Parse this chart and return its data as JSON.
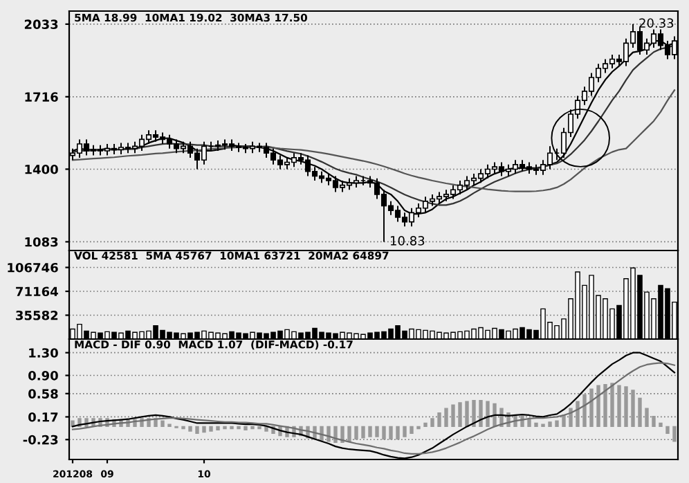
{
  "chart_data": [
    {
      "type": "candlestick",
      "title": "5MA 18.99  10MA1 19.02  30MA3 17.50",
      "categories": [
        "201208",
        null,
        null,
        null,
        null,
        "09",
        null,
        null,
        null,
        null,
        null,
        null,
        null,
        null,
        null,
        null,
        null,
        null,
        null,
        "10",
        null,
        null,
        null,
        null,
        null,
        null,
        null,
        null,
        null,
        null,
        null,
        null,
        null,
        null,
        null,
        null,
        null,
        null,
        null,
        null,
        null,
        null,
        null,
        null,
        null,
        null,
        null,
        null,
        null,
        null,
        null,
        null,
        null,
        null,
        null,
        null,
        null,
        null,
        null,
        null,
        null,
        null,
        null,
        null,
        null,
        null,
        null,
        null,
        null,
        null,
        null,
        null,
        null,
        null,
        null,
        null,
        null,
        null,
        null,
        null,
        null,
        null,
        null,
        null,
        null,
        null,
        null,
        null
      ],
      "ohlc": [
        [
          1460,
          1490,
          1440,
          1470
        ],
        [
          1470,
          1530,
          1450,
          1510
        ],
        [
          1510,
          1530,
          1460,
          1480
        ],
        [
          1480,
          1505,
          1460,
          1485
        ],
        [
          1485,
          1505,
          1460,
          1480
        ],
        [
          1480,
          1510,
          1460,
          1490
        ],
        [
          1490,
          1510,
          1465,
          1485
        ],
        [
          1485,
          1515,
          1465,
          1495
        ],
        [
          1495,
          1515,
          1470,
          1490
        ],
        [
          1490,
          1520,
          1470,
          1500
        ],
        [
          1500,
          1550,
          1480,
          1530
        ],
        [
          1530,
          1570,
          1510,
          1550
        ],
        [
          1550,
          1570,
          1520,
          1540
        ],
        [
          1540,
          1560,
          1510,
          1530
        ],
        [
          1530,
          1550,
          1490,
          1510
        ],
        [
          1510,
          1530,
          1470,
          1490
        ],
        [
          1490,
          1520,
          1470,
          1500
        ],
        [
          1500,
          1520,
          1450,
          1470
        ],
        [
          1470,
          1490,
          1400,
          1440
        ],
        [
          1440,
          1520,
          1420,
          1500
        ],
        [
          1500,
          1520,
          1480,
          1500
        ],
        [
          1500,
          1525,
          1480,
          1505
        ],
        [
          1505,
          1530,
          1485,
          1510
        ],
        [
          1510,
          1530,
          1480,
          1500
        ],
        [
          1500,
          1515,
          1475,
          1495
        ],
        [
          1495,
          1510,
          1470,
          1490
        ],
        [
          1490,
          1520,
          1470,
          1500
        ],
        [
          1500,
          1515,
          1475,
          1495
        ],
        [
          1495,
          1515,
          1450,
          1470
        ],
        [
          1470,
          1490,
          1420,
          1440
        ],
        [
          1440,
          1460,
          1400,
          1420
        ],
        [
          1420,
          1450,
          1400,
          1430
        ],
        [
          1430,
          1470,
          1410,
          1450
        ],
        [
          1450,
          1470,
          1420,
          1440
        ],
        [
          1440,
          1460,
          1370,
          1390
        ],
        [
          1390,
          1410,
          1350,
          1370
        ],
        [
          1370,
          1390,
          1340,
          1360
        ],
        [
          1360,
          1380,
          1330,
          1350
        ],
        [
          1350,
          1370,
          1300,
          1320
        ],
        [
          1320,
          1350,
          1300,
          1330
        ],
        [
          1330,
          1360,
          1310,
          1340
        ],
        [
          1340,
          1370,
          1320,
          1350
        ],
        [
          1350,
          1370,
          1330,
          1350
        ],
        [
          1350,
          1370,
          1320,
          1340
        ],
        [
          1340,
          1360,
          1270,
          1290
        ],
        [
          1290,
          1310,
          1083,
          1240
        ],
        [
          1240,
          1260,
          1200,
          1220
        ],
        [
          1220,
          1240,
          1170,
          1190
        ],
        [
          1190,
          1210,
          1150,
          1170
        ],
        [
          1170,
          1230,
          1150,
          1210
        ],
        [
          1210,
          1250,
          1190,
          1230
        ],
        [
          1230,
          1280,
          1210,
          1260
        ],
        [
          1260,
          1290,
          1240,
          1270
        ],
        [
          1270,
          1300,
          1250,
          1280
        ],
        [
          1280,
          1310,
          1260,
          1290
        ],
        [
          1290,
          1330,
          1270,
          1310
        ],
        [
          1310,
          1350,
          1290,
          1330
        ],
        [
          1330,
          1370,
          1310,
          1350
        ],
        [
          1350,
          1380,
          1330,
          1360
        ],
        [
          1360,
          1400,
          1340,
          1380
        ],
        [
          1380,
          1420,
          1360,
          1400
        ],
        [
          1400,
          1430,
          1380,
          1410
        ],
        [
          1410,
          1430,
          1370,
          1390
        ],
        [
          1390,
          1420,
          1370,
          1400
        ],
        [
          1400,
          1440,
          1380,
          1420
        ],
        [
          1420,
          1440,
          1390,
          1410
        ],
        [
          1410,
          1430,
          1380,
          1400
        ],
        [
          1400,
          1420,
          1375,
          1395
        ],
        [
          1395,
          1440,
          1375,
          1420
        ],
        [
          1420,
          1500,
          1400,
          1470
        ],
        [
          1470,
          1490,
          1440,
          1470
        ],
        [
          1470,
          1580,
          1450,
          1560
        ],
        [
          1560,
          1660,
          1540,
          1640
        ],
        [
          1640,
          1720,
          1620,
          1700
        ],
        [
          1700,
          1760,
          1680,
          1740
        ],
        [
          1740,
          1820,
          1720,
          1800
        ],
        [
          1800,
          1860,
          1780,
          1840
        ],
        [
          1840,
          1880,
          1820,
          1860
        ],
        [
          1860,
          1900,
          1840,
          1880
        ],
        [
          1880,
          1900,
          1850,
          1870
        ],
        [
          1870,
          1970,
          1850,
          1950
        ],
        [
          1950,
          2033,
          1930,
          2000
        ],
        [
          2000,
          2020,
          1900,
          1920
        ],
        [
          1920,
          1970,
          1900,
          1950
        ],
        [
          1950,
          2010,
          1930,
          1990
        ],
        [
          1990,
          2010,
          1920,
          1940
        ],
        [
          1940,
          1960,
          1880,
          1900
        ],
        [
          1900,
          1980,
          1880,
          1960
        ]
      ],
      "series": [
        {
          "type": "line",
          "color": "#000000",
          "values": [
            1480,
            1490,
            1485,
            1485,
            1485,
            1490,
            1485,
            1487,
            1489,
            1490,
            1500,
            1515,
            1525,
            1535,
            1535,
            1525,
            1515,
            1500,
            1480,
            1480,
            1480,
            1485,
            1490,
            1505,
            1500,
            1500,
            1500,
            1495,
            1490,
            1480,
            1465,
            1450,
            1440,
            1435,
            1425,
            1415,
            1400,
            1380,
            1360,
            1345,
            1340,
            1340,
            1340,
            1345,
            1335,
            1305,
            1290,
            1260,
            1220,
            1205,
            1205,
            1210,
            1225,
            1250,
            1270,
            1280,
            1295,
            1310,
            1330,
            1345,
            1365,
            1380,
            1390,
            1400,
            1405,
            1405,
            1405,
            1405,
            1410,
            1420,
            1430,
            1460,
            1510,
            1570,
            1630,
            1690,
            1745,
            1790,
            1825,
            1850,
            1880,
            1910,
            1915,
            1925,
            1960,
            1960,
            1940,
            1950
          ]
        },
        {
          "type": "line",
          "color": "#333333",
          "values": [
            1475,
            1480,
            1480,
            1482,
            1483,
            1485,
            1485,
            1486,
            1487,
            1488,
            1495,
            1500,
            1505,
            1510,
            1512,
            1510,
            1510,
            1508,
            1505,
            1505,
            1500,
            1500,
            1500,
            1497,
            1496,
            1495,
            1495,
            1497,
            1500,
            1494,
            1486,
            1479,
            1473,
            1467,
            1457,
            1445,
            1432,
            1417,
            1402,
            1391,
            1383,
            1376,
            1365,
            1356,
            1346,
            1334,
            1320,
            1304,
            1289,
            1277,
            1266,
            1257,
            1249,
            1243,
            1243,
            1250,
            1261,
            1277,
            1296,
            1313,
            1330,
            1345,
            1357,
            1369,
            1382,
            1392,
            1399,
            1403,
            1409,
            1418,
            1425,
            1440,
            1465,
            1495,
            1527,
            1566,
            1609,
            1655,
            1701,
            1741,
            1789,
            1833,
            1861,
            1886,
            1911,
            1925,
            1931,
            1941
          ]
        },
        {
          "type": "line",
          "color": "#555555",
          "values": [
            1440,
            1442,
            1444,
            1446,
            1448,
            1450,
            1452,
            1455,
            1458,
            1460,
            1462,
            1465,
            1468,
            1470,
            1473,
            1476,
            1478,
            1480,
            1482,
            1485,
            1488,
            1490,
            1492,
            1494,
            1495,
            1496,
            1496,
            1496,
            1495,
            1493,
            1490,
            1488,
            1486,
            1484,
            1480,
            1476,
            1471,
            1466,
            1460,
            1454,
            1448,
            1442,
            1436,
            1429,
            1421,
            1412,
            1402,
            1392,
            1381,
            1372,
            1364,
            1357,
            1350,
            1344,
            1338,
            1333,
            1328,
            1324,
            1320,
            1316,
            1312,
            1309,
            1306,
            1304,
            1303,
            1303,
            1303,
            1304,
            1307,
            1312,
            1320,
            1335,
            1355,
            1380,
            1405,
            1425,
            1445,
            1460,
            1475,
            1485,
            1490,
            1520,
            1550,
            1580,
            1610,
            1650,
            1700,
            1745
          ]
        }
      ],
      "annotations": [
        {
          "text": "20.33",
          "y": 2033
        },
        "10.83"
      ],
      "ylim": [
        1045,
        2090
      ],
      "yticks": [
        1083,
        1400,
        1716,
        2033
      ],
      "grid": "y",
      "tick_labels": "y",
      "legend": false
    },
    {
      "type": "bar",
      "title": "VOL 42581  5MA 45767  10MA1 63721  20MA2 64897",
      "categories": [
        "201208",
        null,
        null,
        null,
        null,
        "09",
        null,
        null,
        null,
        null,
        null,
        null,
        null,
        null,
        null,
        null,
        null,
        null,
        null,
        "10",
        null,
        null,
        null,
        null,
        null,
        null,
        null,
        null,
        null,
        null,
        null,
        null,
        null,
        null,
        null,
        null,
        null,
        null,
        null,
        null,
        null,
        null,
        null,
        null,
        null,
        null,
        null,
        null,
        null,
        null,
        null,
        null,
        null,
        null,
        null,
        null,
        null,
        null,
        null,
        null,
        null,
        null,
        null,
        null,
        null,
        null,
        null,
        null,
        null,
        null,
        null,
        null,
        null,
        null,
        null,
        null,
        null,
        null,
        null,
        null,
        null,
        null,
        null,
        null,
        null,
        null,
        null,
        null
      ],
      "values": [
        15000,
        22000,
        12000,
        10000,
        9000,
        11000,
        10000,
        9000,
        12000,
        10000,
        11000,
        12000,
        20000,
        13000,
        10000,
        9000,
        8000,
        9000,
        10000,
        12000,
        10000,
        9000,
        8000,
        11000,
        9000,
        8000,
        10000,
        9000,
        8000,
        10000,
        12000,
        14000,
        11000,
        9000,
        10000,
        16000,
        10000,
        9000,
        8000,
        10000,
        9000,
        8000,
        7000,
        9000,
        10000,
        11000,
        15000,
        20000,
        12000,
        15000,
        14000,
        13000,
        12000,
        10000,
        9000,
        10000,
        11000,
        12000,
        15000,
        17000,
        13000,
        16000,
        14000,
        12000,
        15000,
        17000,
        14000,
        13000,
        45000,
        25000,
        20000,
        30000,
        60000,
        100000,
        80000,
        95000,
        65000,
        60000,
        45000,
        50000,
        90000,
        106000,
        95000,
        70000,
        60000,
        80000,
        75000,
        55000
      ],
      "colors": [
        "#ffffff",
        "#ffffff",
        "#000000",
        "#ffffff",
        "#000000",
        "#ffffff",
        "#000000",
        "#ffffff",
        "#000000",
        "#ffffff",
        "#ffffff",
        "#ffffff",
        "#000000",
        "#000000",
        "#000000",
        "#000000",
        "#ffffff",
        "#000000",
        "#000000",
        "#ffffff",
        "#ffffff",
        "#ffffff",
        "#ffffff",
        "#000000",
        "#000000",
        "#000000",
        "#ffffff",
        "#000000",
        "#000000",
        "#000000",
        "#000000",
        "#ffffff",
        "#ffffff",
        "#000000",
        "#000000",
        "#000000",
        "#000000",
        "#000000",
        "#000000",
        "#ffffff",
        "#ffffff",
        "#ffffff",
        "#ffffff",
        "#000000",
        "#000000",
        "#000000",
        "#000000",
        "#000000",
        "#000000",
        "#ffffff",
        "#ffffff",
        "#ffffff",
        "#ffffff",
        "#ffffff",
        "#ffffff",
        "#ffffff",
        "#ffffff",
        "#ffffff",
        "#ffffff",
        "#ffffff",
        "#ffffff",
        "#ffffff",
        "#000000",
        "#ffffff",
        "#ffffff",
        "#000000",
        "#000000",
        "#000000",
        "#ffffff",
        "#ffffff",
        "#ffffff",
        "#ffffff",
        "#ffffff",
        "#ffffff",
        "#ffffff",
        "#ffffff",
        "#ffffff",
        "#ffffff",
        "#ffffff",
        "#000000",
        "#ffffff",
        "#ffffff",
        "#000000",
        "#ffffff",
        "#ffffff",
        "#000000",
        "#000000",
        "#ffffff"
      ],
      "ylim": [
        0,
        132000
      ],
      "yticks": [
        35582,
        71164,
        106746
      ],
      "grid": "y",
      "tick_labels": "y",
      "legend": false
    },
    {
      "type": "line",
      "title": "MACD - DIF 0.90  MACD 1.07  (DIF-MACD) -0.17",
      "categories": [
        "201208",
        null,
        null,
        null,
        null,
        "09",
        null,
        null,
        null,
        null,
        null,
        null,
        null,
        null,
        null,
        null,
        null,
        null,
        null,
        "10",
        null,
        null,
        null,
        null,
        null,
        null,
        null,
        null,
        null,
        null,
        null,
        null,
        null,
        null,
        null,
        null,
        null,
        null,
        null,
        null,
        null,
        null,
        null,
        null,
        null,
        null,
        null,
        null,
        null,
        null,
        null,
        null,
        null,
        null,
        null,
        null,
        null,
        null,
        null,
        null,
        null,
        null,
        null,
        null,
        null,
        null,
        null,
        null,
        null,
        null,
        null,
        null,
        null,
        null,
        null,
        null,
        null,
        null,
        null,
        null,
        null,
        null,
        null,
        null,
        null,
        null,
        null,
        null
      ],
      "series": [
        {
          "type": "bar",
          "color": "#999999",
          "values": [
            0.1,
            0.14,
            0.14,
            0.14,
            0.14,
            0.14,
            0.12,
            0.12,
            0.12,
            0.12,
            0.14,
            0.14,
            0.14,
            0.1,
            0.04,
            -0.02,
            -0.04,
            -0.08,
            -0.12,
            -0.1,
            -0.08,
            -0.06,
            -0.04,
            -0.04,
            -0.04,
            -0.06,
            -0.04,
            -0.04,
            -0.08,
            -0.12,
            -0.16,
            -0.18,
            -0.18,
            -0.16,
            -0.2,
            -0.22,
            -0.24,
            -0.26,
            -0.28,
            -0.28,
            -0.26,
            -0.22,
            -0.2,
            -0.18,
            -0.18,
            -0.22,
            -0.22,
            -0.22,
            -0.18,
            -0.12,
            -0.04,
            0.06,
            0.14,
            0.24,
            0.32,
            0.38,
            0.42,
            0.44,
            0.46,
            0.46,
            0.44,
            0.4,
            0.32,
            0.24,
            0.2,
            0.18,
            0.12,
            0.06,
            0.04,
            0.08,
            0.1,
            0.2,
            0.32,
            0.44,
            0.56,
            0.66,
            0.72,
            0.74,
            0.76,
            0.72,
            0.7,
            0.64,
            0.5,
            0.32,
            0.18,
            0.06,
            -0.12,
            -0.26
          ]
        },
        {
          "type": "line",
          "color": "#000000",
          "values": [
            0.0,
            0.03,
            0.05,
            0.07,
            0.09,
            0.1,
            0.11,
            0.12,
            0.13,
            0.15,
            0.17,
            0.19,
            0.2,
            0.19,
            0.17,
            0.14,
            0.12,
            0.09,
            0.06,
            0.06,
            0.06,
            0.06,
            0.06,
            0.06,
            0.05,
            0.04,
            0.04,
            0.03,
            0.01,
            -0.03,
            -0.07,
            -0.1,
            -0.12,
            -0.14,
            -0.18,
            -0.22,
            -0.26,
            -0.3,
            -0.35,
            -0.38,
            -0.4,
            -0.41,
            -0.42,
            -0.43,
            -0.46,
            -0.5,
            -0.53,
            -0.55,
            -0.56,
            -0.54,
            -0.5,
            -0.44,
            -0.38,
            -0.3,
            -0.22,
            -0.14,
            -0.07,
            0.0,
            0.06,
            0.12,
            0.17,
            0.2,
            0.2,
            0.19,
            0.2,
            0.21,
            0.2,
            0.18,
            0.17,
            0.2,
            0.22,
            0.3,
            0.4,
            0.52,
            0.65,
            0.78,
            0.9,
            1.0,
            1.1,
            1.17,
            1.25,
            1.3,
            1.3,
            1.25,
            1.2,
            1.15,
            1.05,
            0.95
          ]
        },
        {
          "type": "line",
          "color": "#6e6e6e",
          "values": [
            -0.05,
            -0.04,
            -0.02,
            0.0,
            0.02,
            0.03,
            0.05,
            0.06,
            0.07,
            0.09,
            0.1,
            0.12,
            0.13,
            0.14,
            0.15,
            0.15,
            0.14,
            0.13,
            0.12,
            0.11,
            0.1,
            0.09,
            0.08,
            0.08,
            0.07,
            0.07,
            0.06,
            0.05,
            0.05,
            0.03,
            0.01,
            -0.01,
            -0.03,
            -0.06,
            -0.08,
            -0.11,
            -0.14,
            -0.17,
            -0.21,
            -0.24,
            -0.27,
            -0.3,
            -0.32,
            -0.34,
            -0.37,
            -0.39,
            -0.42,
            -0.44,
            -0.47,
            -0.48,
            -0.48,
            -0.47,
            -0.45,
            -0.42,
            -0.38,
            -0.33,
            -0.28,
            -0.22,
            -0.17,
            -0.11,
            -0.05,
            0.0,
            0.04,
            0.07,
            0.1,
            0.12,
            0.14,
            0.15,
            0.15,
            0.16,
            0.17,
            0.2,
            0.24,
            0.3,
            0.37,
            0.45,
            0.54,
            0.63,
            0.72,
            0.81,
            0.9,
            0.98,
            1.05,
            1.09,
            1.11,
            1.12,
            1.11,
            1.08
          ]
        }
      ],
      "ylim": [
        -0.58,
        1.54
      ],
      "yticks": [
        -0.23,
        0.17,
        0.58,
        {
          "value": 0.9,
          "label": "0.90"
        },
        {
          "value": 1.3,
          "label": "1.30"
        }
      ],
      "grid": "y",
      "legend": false
    }
  ]
}
